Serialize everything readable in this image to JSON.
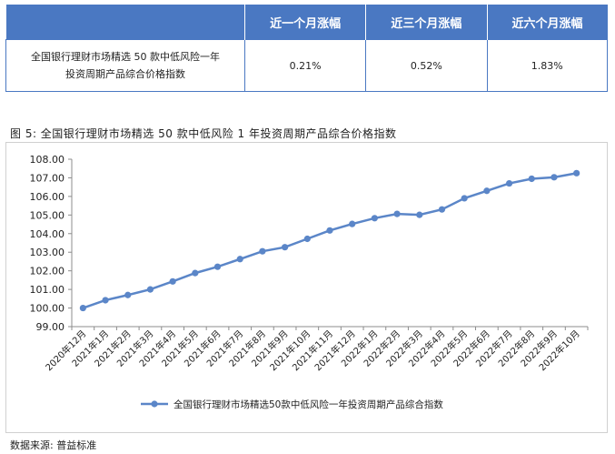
{
  "table": {
    "headers": [
      "",
      "近一个月涨幅",
      "近三个月涨幅",
      "近六个月涨幅"
    ],
    "row": {
      "name_line1": "全国银行理财市场精选 50 款中低风险一年",
      "name_line2": "投资周期产品综合价格指数",
      "values": [
        "0.21%",
        "0.52%",
        "1.83%"
      ]
    }
  },
  "figure_title": "图 5: 全国银行理财市场精选 50 款中低风险 1 年投资周期产品综合价格指数",
  "source": "数据来源: 普益标准",
  "colors": {
    "accent": "#4a78c2",
    "series": "#5b86c8"
  },
  "chart_data": {
    "type": "line",
    "x": [
      "2020年12月",
      "2021年1月",
      "2021年2月",
      "2021年3月",
      "2021年4月",
      "2021年5月",
      "2021年6月",
      "2021年7月",
      "2021年8月",
      "2021年9月",
      "2021年10月",
      "2021年11月",
      "2021年12月",
      "2022年1月",
      "2022年2月",
      "2022年3月",
      "2022年4月",
      "2022年5月",
      "2022年6月",
      "2022年7月",
      "2022年8月",
      "2022年9月",
      "2022年10月"
    ],
    "series": [
      {
        "name": "全国银行理财市场精选50款中低风险一年投资周期产品综合指数",
        "values": [
          100.0,
          100.42,
          100.7,
          101.0,
          101.43,
          101.88,
          102.22,
          102.63,
          103.05,
          103.27,
          103.72,
          104.17,
          104.52,
          104.83,
          105.06,
          105.01,
          105.3,
          105.9,
          106.3,
          106.7,
          106.95,
          107.03,
          107.25
        ]
      }
    ],
    "yticks": [
      "99.00",
      "100.00",
      "101.00",
      "102.00",
      "103.00",
      "104.00",
      "105.00",
      "106.00",
      "107.00",
      "108.00"
    ],
    "ylim": [
      99,
      108
    ],
    "legend": "bottom",
    "grid": false
  }
}
